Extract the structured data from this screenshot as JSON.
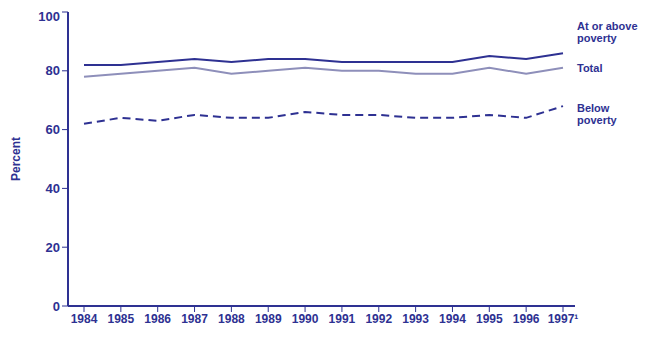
{
  "chart_data": {
    "type": "line",
    "y_label": "Percent",
    "categories": [
      "1984",
      "1985",
      "1986",
      "1987",
      "1988",
      "1989",
      "1990",
      "1991",
      "1992",
      "1993",
      "1994",
      "1995",
      "1996",
      "1997¹"
    ],
    "series": [
      {
        "name": "At or above poverty",
        "color": "#2e3192",
        "line_style": "solid",
        "values": [
          82,
          82,
          83,
          84,
          83,
          84,
          84,
          83,
          83,
          83,
          83,
          85,
          84,
          86
        ]
      },
      {
        "name": "Total",
        "color": "#8e8fba",
        "line_style": "solid",
        "values": [
          78,
          79,
          80,
          81,
          79,
          80,
          81,
          80,
          80,
          79,
          79,
          81,
          79,
          81
        ]
      },
      {
        "name": "Below poverty",
        "color": "#2e3192",
        "line_style": "dashed",
        "values": [
          62,
          64,
          63,
          65,
          64,
          64,
          66,
          65,
          65,
          64,
          64,
          65,
          64,
          68
        ]
      }
    ],
    "ylim": [
      0,
      100
    ],
    "yticks": [
      0,
      20,
      40,
      60,
      80,
      100
    ],
    "grid": false
  }
}
